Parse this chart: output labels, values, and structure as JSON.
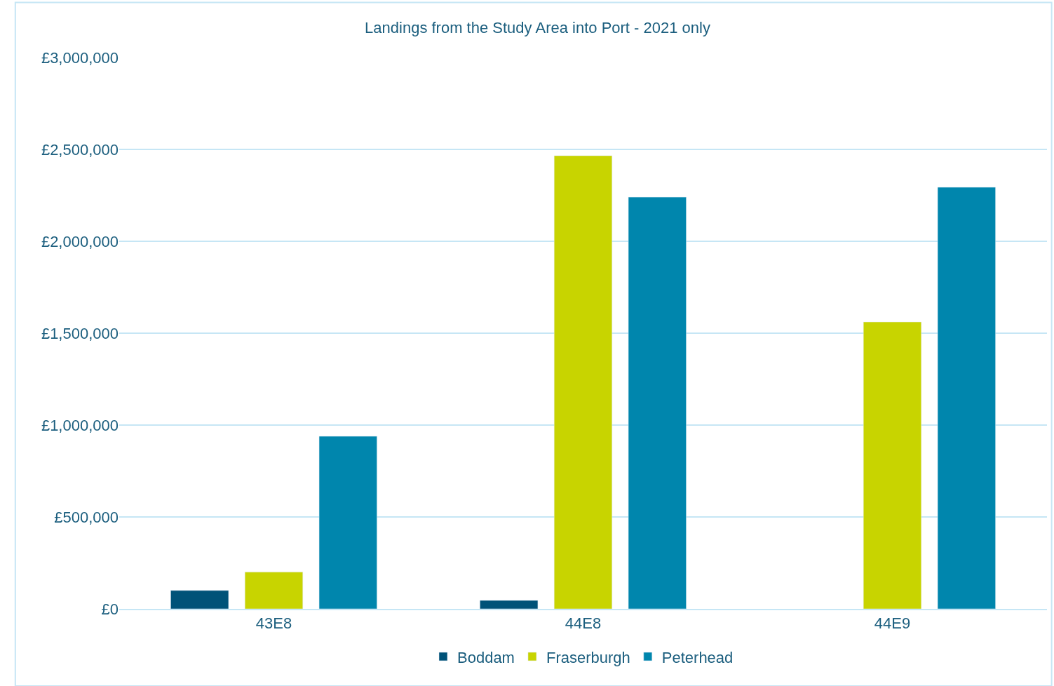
{
  "chart_data": {
    "type": "bar",
    "title": "Landings from the Study Area into Port - 2021 only",
    "categories": [
      "43E8",
      "44E8",
      "44E9"
    ],
    "series": [
      {
        "name": "Boddam",
        "color": "#005278",
        "values": [
          100000,
          46000,
          null
        ]
      },
      {
        "name": "Fraserburgh",
        "color": "#c8d400",
        "values": [
          200000,
          2466000,
          1561000
        ]
      },
      {
        "name": "Peterhead",
        "color": "#0086ad",
        "values": [
          939000,
          2240000,
          2294000
        ]
      }
    ],
    "ylim": [
      0,
      3000000
    ],
    "yticks": [
      {
        "value": 0,
        "label": "£0"
      },
      {
        "value": 500000,
        "label": "£500,000"
      },
      {
        "value": 1000000,
        "label": "£1,000,000"
      },
      {
        "value": 1500000,
        "label": "£1,500,000"
      },
      {
        "value": 2000000,
        "label": "£2,000,000"
      },
      {
        "value": 2500000,
        "label": "£2,500,000"
      },
      {
        "value": 3000000,
        "label": "£3,000,000"
      }
    ],
    "grid": "y",
    "legend": "bottom"
  }
}
